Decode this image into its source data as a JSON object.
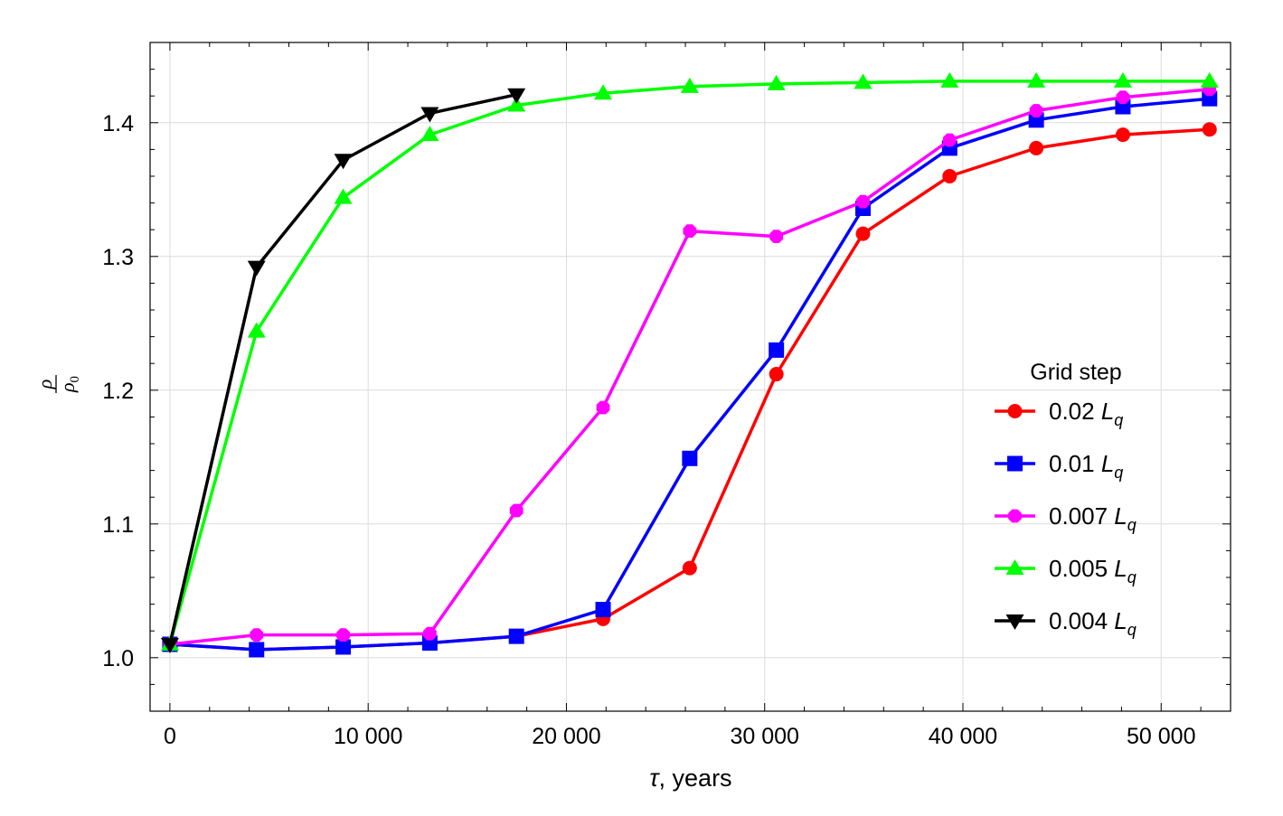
{
  "chart_data": {
    "type": "line",
    "xlabel": {
      "sym": "τ",
      "rest": ", years"
    },
    "ylabel": {
      "num": "ρ",
      "den": "ρ",
      "den_sub": "0"
    },
    "xlim": [
      -1000,
      53500
    ],
    "ylim": [
      0.96,
      1.46
    ],
    "xticks": [
      0,
      10000,
      20000,
      30000,
      40000,
      50000
    ],
    "xtick_labels": [
      "0",
      "10 000",
      "20 000",
      "30 000",
      "40 000",
      "50 000"
    ],
    "yticks": [
      1.0,
      1.1,
      1.2,
      1.3,
      1.4
    ],
    "ytick_labels": [
      "1.0",
      "1.1",
      "1.2",
      "1.3",
      "1.4"
    ],
    "grid": true,
    "legend": {
      "title": "Grid step",
      "placement": "right",
      "items": [
        {
          "num": "0.02",
          "sym": "L",
          "sub": "q"
        },
        {
          "num": "0.01",
          "sym": "L",
          "sub": "q"
        },
        {
          "num": "0.007",
          "sym": "L",
          "sub": "q"
        },
        {
          "num": "0.005",
          "sym": "L",
          "sub": "q"
        },
        {
          "num": "0.004",
          "sym": "L",
          "sub": "q"
        }
      ]
    },
    "series": [
      {
        "name": "0.02 Lq",
        "color": "#ff0000",
        "marker": "circle",
        "x": [
          0,
          4370,
          8740,
          13110,
          17480,
          21850,
          26220,
          30590,
          34960,
          39330,
          43700,
          48070,
          52440
        ],
        "y": [
          1.01,
          1.006,
          1.008,
          1.011,
          1.016,
          1.029,
          1.067,
          1.212,
          1.317,
          1.36,
          1.381,
          1.391,
          1.395
        ]
      },
      {
        "name": "0.01 Lq",
        "color": "#0000ff",
        "marker": "square",
        "x": [
          0,
          4370,
          8740,
          13110,
          17480,
          21850,
          26220,
          30590,
          34960,
          39330,
          43700,
          48070,
          52440
        ],
        "y": [
          1.01,
          1.006,
          1.008,
          1.011,
          1.016,
          1.036,
          1.149,
          1.23,
          1.336,
          1.381,
          1.402,
          1.412,
          1.418
        ]
      },
      {
        "name": "0.007 Lq",
        "color": "#ff00ff",
        "marker": "diamond",
        "x": [
          0,
          4370,
          8740,
          13110,
          17480,
          21850,
          26220,
          30590,
          34960,
          39330,
          43700,
          48070,
          52440
        ],
        "y": [
          1.01,
          1.017,
          1.017,
          1.018,
          1.11,
          1.187,
          1.319,
          1.315,
          1.341,
          1.387,
          1.409,
          1.419,
          1.425
        ]
      },
      {
        "name": "0.005 Lq",
        "color": "#00ff00",
        "marker": "triangle-up",
        "x": [
          0,
          4370,
          8740,
          13110,
          17480,
          21850,
          26220,
          30590,
          34960,
          39330,
          43700,
          48070,
          52440
        ],
        "y": [
          1.01,
          1.244,
          1.344,
          1.391,
          1.413,
          1.422,
          1.427,
          1.429,
          1.43,
          1.431,
          1.431,
          1.431,
          1.431
        ]
      },
      {
        "name": "0.004 Lq",
        "color": "#000000",
        "marker": "triangle-down",
        "x": [
          0,
          4370,
          8740,
          13110,
          17480
        ],
        "y": [
          1.01,
          1.292,
          1.372,
          1.407,
          1.421
        ]
      }
    ]
  }
}
